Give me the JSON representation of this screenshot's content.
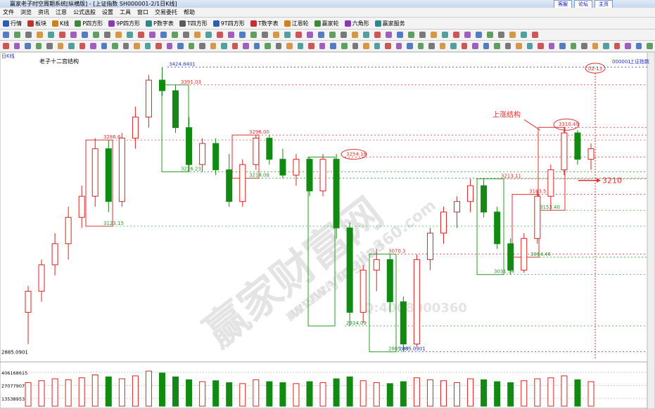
{
  "window": {
    "title": "赢家老子时空周期系统[纵横版] - [上证指数  SH000001-2/1日K线]",
    "links": [
      "客服",
      "论坛",
      "主页"
    ]
  },
  "menu": [
    "文件",
    "浏览",
    "资讯",
    "江恩",
    "公式选股",
    "设置",
    "工具",
    "窗口",
    "交易委托",
    "帮助"
  ],
  "toolbar": [
    "行情",
    "板块",
    "K线",
    "P四方形",
    "9P四方形",
    "P数字表",
    "T四方形",
    "9T四方形",
    "T数字表",
    "江恩轮",
    "赢家轮",
    "六角形",
    "赢家服务"
  ],
  "chart_data": {
    "type": "candlestick",
    "period": "日K线",
    "title": "老子十二宫结构",
    "code": "000001",
    "name": "上证指数",
    "date_badge": "02-13",
    "ylim": [
      2870,
      3440
    ],
    "open": [
      2960,
      3000,
      3050,
      3090,
      3140,
      3180,
      3270,
      3170,
      3290,
      3330,
      3400,
      3380,
      3310,
      3240,
      3280,
      3230,
      3170,
      3240,
      3290,
      3250,
      3220,
      3250,
      3190,
      3250,
      3120,
      2960,
      3040,
      3060,
      2980,
      2900,
      3060,
      3110,
      3150,
      3170,
      3200,
      3150,
      3090,
      3040,
      3100,
      3180,
      3230,
      3300,
      3250
    ],
    "high": [
      3010,
      3060,
      3110,
      3160,
      3200,
      3290,
      3286,
      3300,
      3350,
      3410,
      3424.84,
      3391,
      3330,
      3290,
      3290,
      3260,
      3250,
      3296,
      3296,
      3270,
      3260,
      3254,
      3260,
      3260,
      3130,
      3050,
      3080,
      3070,
      2990,
      3070,
      3120,
      3160,
      3180,
      3213,
      3213,
      3160,
      3100,
      3110,
      3190,
      3240,
      3310.49,
      3305,
      3280
    ],
    "low": [
      2900,
      2980,
      3030,
      3060,
      3120,
      3160,
      3150,
      3160,
      3270,
      3310,
      3370,
      3300,
      3226,
      3226,
      3220,
      3160,
      3160,
      3230,
      3240,
      3214,
      3200,
      3180,
      3180,
      3100,
      2934,
      2940,
      3000,
      2960,
      2885.09,
      2895,
      3040,
      3090,
      3120,
      3150,
      3140,
      3080,
      3031.54,
      3035,
      3090,
      3153,
      3220,
      3240,
      3230
    ],
    "close": [
      3000,
      3050,
      3090,
      3140,
      3180,
      3270,
      3170,
      3290,
      3330,
      3400,
      3380,
      3310,
      3240,
      3280,
      3230,
      3170,
      3240,
      3290,
      3250,
      3220,
      3250,
      3190,
      3250,
      3120,
      2960,
      3040,
      3060,
      2980,
      2900,
      3060,
      3110,
      3150,
      3170,
      3200,
      3150,
      3090,
      3040,
      3100,
      3180,
      3230,
      3300,
      3250,
      3270
    ],
    "levels": [
      {
        "value": 3424.8401,
        "label": "3424.8401",
        "color": "#2233cc"
      },
      {
        "value": 3391.03,
        "label": "3391.03",
        "color": "#e03030"
      },
      {
        "value": 3286.6,
        "label": "3286.6",
        "color": "#e03030"
      },
      {
        "value": 3226.23,
        "label": "3226.23",
        "color": "#2a9a2a"
      },
      {
        "value": 3123.15,
        "label": "3123.15",
        "color": "#2a9a2a"
      },
      {
        "value": 3296,
        "label": "3296.00",
        "color": "#e03030"
      },
      {
        "value": 3214.08,
        "label": "3214.08",
        "color": "#2a9a2a"
      },
      {
        "value": 3254.18,
        "label": "3254.18",
        "color": "#e03030"
      },
      {
        "value": 2934.09,
        "label": "2934.09",
        "color": "#2a9a2a"
      },
      {
        "value": 3070.3,
        "label": "3070.3",
        "color": "#e03030"
      },
      {
        "value": 2885.09,
        "label": "2885.09",
        "color": "#2a9a2a"
      },
      {
        "value": 2885.0901,
        "label": "2885.0901",
        "color": "#2233cc"
      },
      {
        "value": 3213.11,
        "label": "3213.11",
        "color": "#e03030"
      },
      {
        "value": 3183.5,
        "label": "3183.5",
        "color": "#e03030"
      },
      {
        "value": 3153.4,
        "label": "3153.40",
        "color": "#2a9a2a"
      },
      {
        "value": 3064.46,
        "label": "3064.46",
        "color": "#2a9a2a"
      },
      {
        "value": 3031.54,
        "label": "3031.54",
        "color": "#2a9a2a"
      },
      {
        "value": 3310.49,
        "label": "3310.49",
        "color": "#e03030"
      }
    ],
    "annotation": "上涨结构",
    "target": {
      "value": 3210,
      "label": "3210"
    },
    "axis_label": "2885.0901",
    "volume": {
      "ylim": [
        55000000,
        508000000
      ],
      "yticks": [
        135389538,
        270779077,
        406168615
      ],
      "values": [
        300000000,
        320000000,
        340000000,
        330000000,
        350000000,
        380000000,
        360000000,
        340000000,
        370000000,
        420000000,
        400000000,
        360000000,
        330000000,
        310000000,
        320000000,
        300000000,
        290000000,
        330000000,
        310000000,
        300000000,
        290000000,
        310000000,
        300000000,
        340000000,
        360000000,
        320000000,
        300000000,
        290000000,
        310000000,
        350000000,
        330000000,
        320000000,
        300000000,
        340000000,
        330000000,
        310000000,
        300000000,
        320000000,
        340000000,
        350000000,
        370000000,
        330000000,
        310000000
      ]
    },
    "watermark": [
      "赢家财富网",
      "www.yingjia360.com",
      "赢家江恩软件  股票分析软件",
      "Q:4008000360"
    ]
  }
}
